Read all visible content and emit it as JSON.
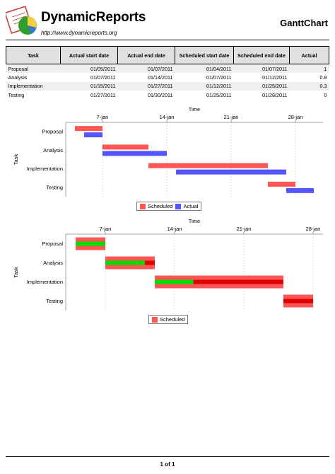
{
  "header": {
    "brand": "DynamicReports",
    "url": "http://www.dynamicreports.org",
    "title": "GanttChart"
  },
  "table": {
    "columns": [
      "Task",
      "Actual start date",
      "Actual end date",
      "Scheduled start date",
      "Scheduled end date",
      "Actual"
    ],
    "rows": [
      [
        "Proposal",
        "01/05/2011",
        "01/07/2011",
        "01/04/2011",
        "01/07/2011",
        "1"
      ],
      [
        "Analysis",
        "01/07/2011",
        "01/14/2011",
        "01/07/2011",
        "01/12/2011",
        "0.8"
      ],
      [
        "Implementation",
        "01/15/2011",
        "01/27/2011",
        "01/12/2011",
        "01/25/2011",
        "0.3"
      ],
      [
        "Testing",
        "01/27/2011",
        "01/30/2011",
        "01/25/2011",
        "01/28/2011",
        "0"
      ]
    ]
  },
  "chart_data": [
    {
      "type": "gantt",
      "xlabel": "Time",
      "ylabel": "Task",
      "x_ticks": [
        "7-jan",
        "14-jan",
        "21-jan",
        "28-jan"
      ],
      "x_range": [
        "2011-01-03",
        "2011-01-31"
      ],
      "categories": [
        "Proposal",
        "Analysis",
        "Implementation",
        "Testing"
      ],
      "grid": true,
      "legend_position": "bottom",
      "series": [
        {
          "name": "Scheduled",
          "color": "#ff5555",
          "start": [
            "2011-01-04",
            "2011-01-07",
            "2011-01-12",
            "2011-01-25"
          ],
          "end": [
            "2011-01-07",
            "2011-01-12",
            "2011-01-25",
            "2011-01-28"
          ]
        },
        {
          "name": "Actual",
          "color": "#5555ff",
          "start": [
            "2011-01-05",
            "2011-01-07",
            "2011-01-15",
            "2011-01-27"
          ],
          "end": [
            "2011-01-07",
            "2011-01-14",
            "2011-01-27",
            "2011-01-30"
          ]
        }
      ]
    },
    {
      "type": "gantt",
      "xlabel": "Time",
      "ylabel": "Task",
      "x_ticks": [
        "7-jan",
        "14-jan",
        "21-jan",
        "28-jan"
      ],
      "x_range": [
        "2011-01-03",
        "2011-01-29"
      ],
      "categories": [
        "Proposal",
        "Analysis",
        "Implementation",
        "Testing"
      ],
      "grid": true,
      "legend_position": "bottom",
      "series": [
        {
          "name": "Scheduled",
          "color": "#ff5555",
          "complete_color": "#00dd00",
          "incomplete_color": "#dd0000",
          "start": [
            "2011-01-04",
            "2011-01-07",
            "2011-01-12",
            "2011-01-25"
          ],
          "end": [
            "2011-01-07",
            "2011-01-12",
            "2011-01-25",
            "2011-01-28"
          ],
          "percent_complete": [
            1,
            0.8,
            0.3,
            0
          ]
        }
      ]
    }
  ],
  "footer": {
    "page": "1 of 1"
  }
}
